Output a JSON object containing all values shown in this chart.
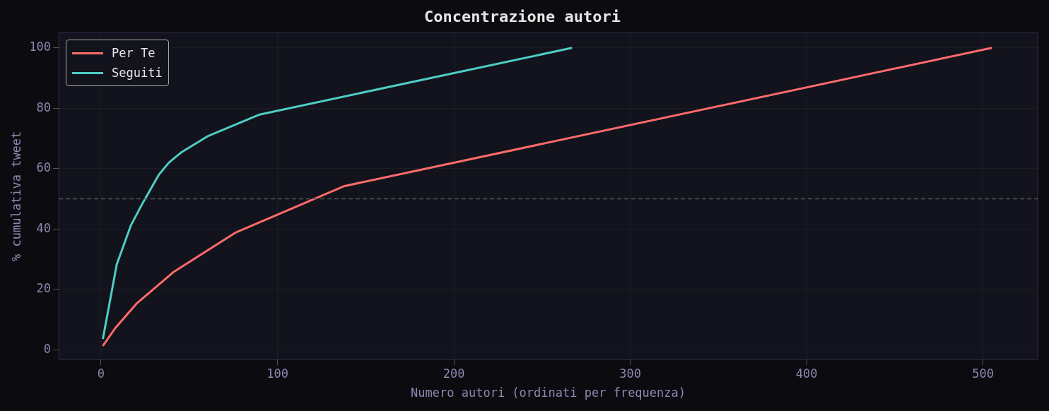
{
  "chart_data": {
    "type": "line",
    "title": "Concentrazione autori",
    "xlabel": "Numero autori (ordinati per frequenza)",
    "ylabel": "% cumulativa tweet",
    "series": [
      {
        "name": "Per Te",
        "color": "#ff6b6b",
        "x": [
          1,
          8,
          20,
          41,
          76,
          138,
          505
        ],
        "values": [
          1.2,
          7.1,
          15.2,
          25.7,
          38.7,
          54.2,
          100
        ]
      },
      {
        "name": "Seguiti",
        "color": "#4ecdc4",
        "x": [
          1,
          3.6,
          8.9,
          17,
          23.9,
          32.8,
          38.5,
          45.3,
          60.7,
          89.9,
          267
        ],
        "values": [
          3.5,
          11.6,
          28.3,
          41.3,
          48.9,
          58,
          62,
          65.3,
          70.8,
          77.9,
          100
        ]
      }
    ],
    "xlim": [
      -24,
      531
    ],
    "xticks": [
      0,
      100,
      200,
      300,
      400,
      500
    ],
    "ylim": [
      -3.3,
      105
    ],
    "yticks": [
      0,
      20,
      40,
      60,
      80,
      100
    ],
    "grid": true,
    "legend": "top left",
    "marker": "none",
    "line_style": "solid",
    "ref_lines": [
      {
        "axis": "y",
        "value": 50,
        "color": "#555555",
        "line_style": "dashed"
      }
    ]
  }
}
